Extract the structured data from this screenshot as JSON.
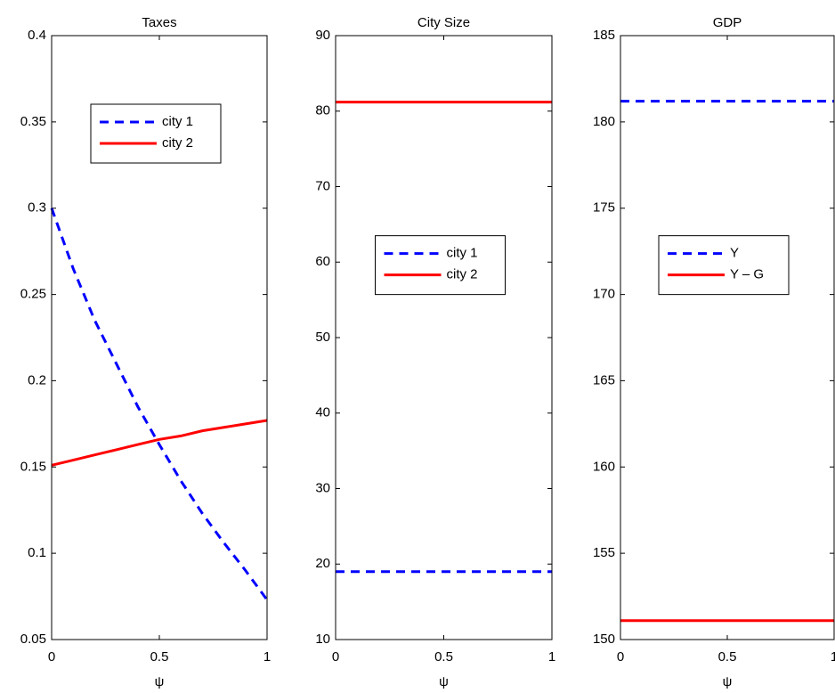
{
  "chart_data": [
    {
      "type": "line",
      "title": "Taxes",
      "xlabel": "ψ",
      "x": [
        0,
        0.1,
        0.2,
        0.3,
        0.4,
        0.5,
        0.6,
        0.7,
        0.8,
        0.9,
        1
      ],
      "series": [
        {
          "name": "city 1",
          "color": "#0000ff",
          "linestyle": "dashed",
          "values": [
            0.3,
            0.265,
            0.235,
            0.21,
            0.185,
            0.163,
            0.142,
            0.123,
            0.106,
            0.09,
            0.073
          ]
        },
        {
          "name": "city 2",
          "color": "#ff0000",
          "linestyle": "solid",
          "values": [
            0.151,
            0.154,
            0.157,
            0.16,
            0.163,
            0.166,
            0.168,
            0.171,
            0.173,
            0.175,
            0.177
          ]
        }
      ],
      "xlim": [
        0,
        1
      ],
      "xticks": [
        0,
        0.5,
        1
      ],
      "ylim": [
        0.05,
        0.4
      ],
      "yticks": [
        0.05,
        0.1,
        0.15,
        0.2,
        0.25,
        0.3,
        0.35,
        0.4
      ],
      "legend": "upper center"
    },
    {
      "type": "line",
      "title": "City Size",
      "xlabel": "ψ",
      "x": [
        0,
        1
      ],
      "series": [
        {
          "name": "city 1",
          "color": "#0000ff",
          "linestyle": "dashed",
          "values": [
            19,
            19
          ]
        },
        {
          "name": "city 2",
          "color": "#ff0000",
          "linestyle": "solid",
          "values": [
            81.2,
            81.2
          ]
        }
      ],
      "xlim": [
        0,
        1
      ],
      "xticks": [
        0,
        0.5,
        1
      ],
      "ylim": [
        10,
        90
      ],
      "yticks": [
        10,
        20,
        30,
        40,
        50,
        60,
        70,
        80,
        90
      ],
      "legend": "center"
    },
    {
      "type": "line",
      "title": "GDP",
      "xlabel": "ψ",
      "x": [
        0,
        1
      ],
      "series": [
        {
          "name": "Y",
          "color": "#0000ff",
          "linestyle": "dashed",
          "values": [
            181.2,
            181.2
          ]
        },
        {
          "name": "Y – G",
          "color": "#ff0000",
          "linestyle": "solid",
          "values": [
            151.1,
            151.1
          ]
        }
      ],
      "xlim": [
        0,
        1
      ],
      "xticks": [
        0,
        0.5,
        1
      ],
      "ylim": [
        150,
        185
      ],
      "yticks": [
        150,
        155,
        160,
        165,
        170,
        175,
        180,
        185
      ],
      "legend": "center"
    }
  ]
}
